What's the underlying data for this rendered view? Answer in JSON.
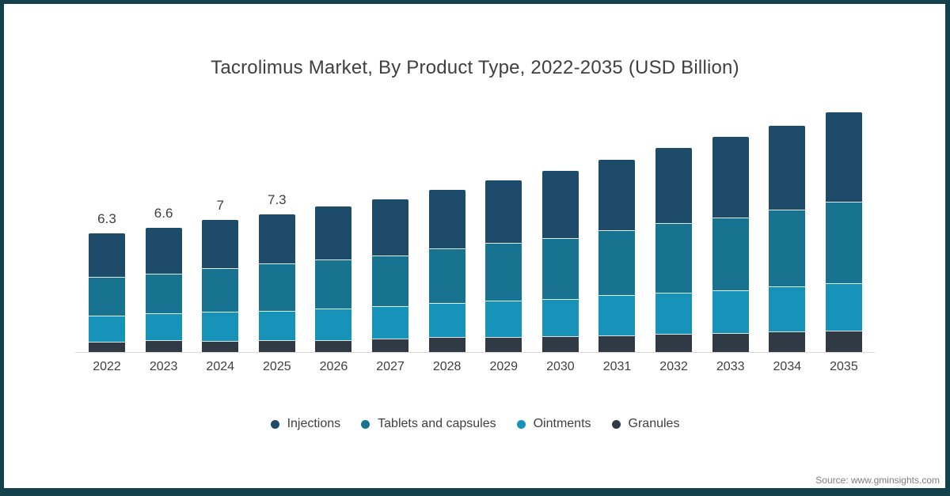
{
  "frame_color": "#14414C",
  "background_color": "#FFFFFF",
  "text_color": "#404040",
  "axis_color": "#D9D9D9",
  "source": {
    "text": "Source: www.gminsights.com",
    "color": "#7F7F7F"
  },
  "chart_data": {
    "type": "bar",
    "stacked": true,
    "title": "Tacrolimus Market, By Product Type, 2022-2035 (USD Billion)",
    "xlabel": "",
    "ylabel": "",
    "ylim": [
      0,
      13
    ],
    "grid": false,
    "legend_position": "bottom",
    "categories": [
      "2022",
      "2023",
      "2024",
      "2025",
      "2026",
      "2027",
      "2028",
      "2029",
      "2030",
      "2031",
      "2032",
      "2033",
      "2034",
      "2035"
    ],
    "series": [
      {
        "name": "Injections",
        "color": "#1E4B69",
        "values": [
          2.3,
          2.45,
          2.55,
          2.62,
          2.78,
          2.98,
          3.1,
          3.3,
          3.55,
          3.72,
          3.95,
          4.25,
          4.45,
          4.75
        ]
      },
      {
        "name": "Tablets and capsules",
        "color": "#187390",
        "values": [
          2.05,
          2.1,
          2.3,
          2.5,
          2.6,
          2.7,
          2.9,
          3.08,
          3.22,
          3.45,
          3.72,
          3.88,
          4.08,
          4.3
        ]
      },
      {
        "name": "Ointments",
        "color": "#1793BA",
        "values": [
          1.4,
          1.43,
          1.55,
          1.55,
          1.69,
          1.72,
          1.82,
          1.92,
          1.98,
          2.13,
          2.18,
          2.26,
          2.38,
          2.5
        ]
      },
      {
        "name": "Granules",
        "color": "#2F3A44",
        "values": [
          0.55,
          0.62,
          0.6,
          0.63,
          0.63,
          0.7,
          0.78,
          0.8,
          0.85,
          0.9,
          0.95,
          1.01,
          1.09,
          1.15
        ]
      }
    ],
    "totals": [
      6.3,
      6.6,
      7.0,
      7.3,
      7.7,
      8.1,
      8.6,
      9.1,
      9.6,
      10.2,
      10.8,
      11.4,
      12.0,
      12.7
    ],
    "bar_total_labels": [
      "6.3",
      "6.6",
      "7",
      "7.3",
      "",
      "",
      "",
      "",
      "",
      "",
      "",
      "",
      "",
      ""
    ]
  }
}
